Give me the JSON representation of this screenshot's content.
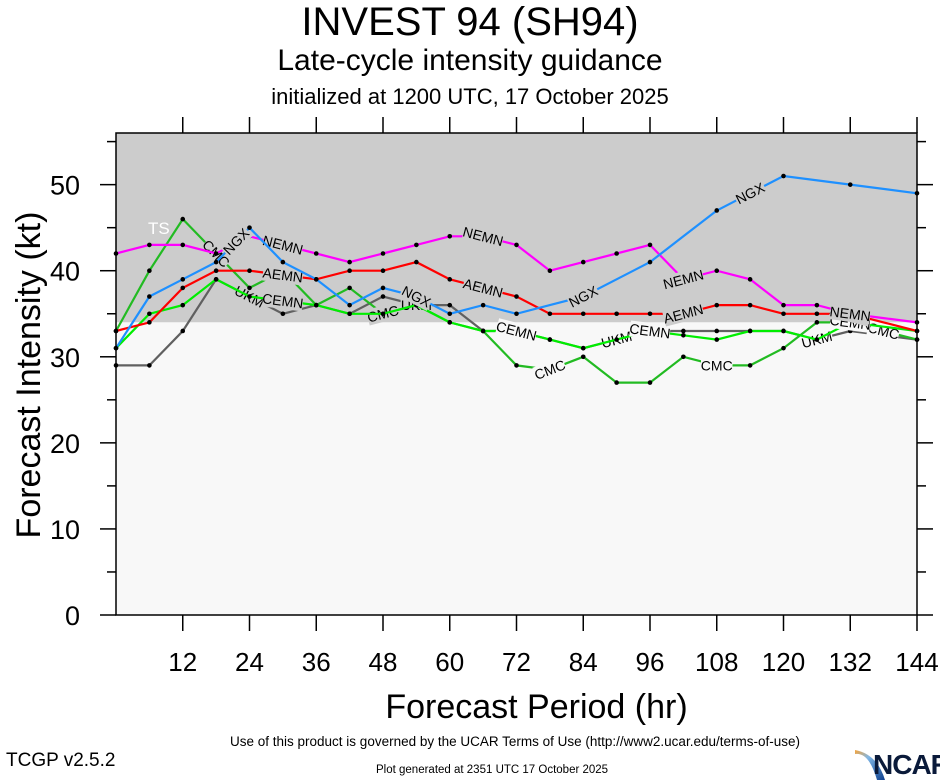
{
  "header": {
    "title": "INVEST 94 (SH94)",
    "subtitle": "Late-cycle intensity guidance",
    "init_line": "initialized at 1200 UTC, 17 October 2025"
  },
  "footer": {
    "terms": "Use of this product is governed by the UCAR Terms of Use (http://www2.ucar.edu/terms-of-use)",
    "version": "TCGP v2.5.2",
    "generated": "Plot generated at 2351 UTC   17 October 2025",
    "logo_text": "NCAR"
  },
  "chart_data": {
    "type": "line",
    "title": "INVEST 94 (SH94)",
    "subtitle": "Late-cycle intensity guidance",
    "xlabel": "Forecast Period (hr)",
    "ylabel": "Forecast Intensity (kt)",
    "xlim": [
      0,
      144
    ],
    "ylim": [
      0,
      56
    ],
    "xticks": [
      12,
      24,
      36,
      48,
      60,
      72,
      84,
      96,
      108,
      120,
      132,
      144
    ],
    "yticks": [
      0,
      10,
      20,
      30,
      40,
      50
    ],
    "yminor_step": 5,
    "grid": false,
    "threshold": {
      "label": "TS",
      "value": 34,
      "shade_above": "#cccccc",
      "shade_below": "#f8f8f8"
    },
    "x": [
      0,
      6,
      12,
      18,
      24,
      30,
      36,
      42,
      48,
      54,
      60,
      66,
      72,
      78,
      84,
      90,
      96,
      102,
      108,
      114,
      120,
      126,
      132,
      138,
      144
    ],
    "series": [
      {
        "name": "UKM",
        "color": "#606060",
        "values": [
          29,
          29,
          33,
          39,
          37,
          35,
          36,
          35,
          37,
          36,
          36,
          33,
          33,
          32,
          31,
          32,
          33,
          33,
          33,
          33,
          33,
          32,
          33,
          32.5,
          32
        ],
        "dots": [
          0,
          1,
          2,
          3,
          5,
          6,
          7,
          8,
          10,
          11,
          12,
          13,
          14,
          16,
          17,
          18,
          19,
          20,
          22,
          24
        ],
        "label_at": [
          4,
          9,
          15,
          21
        ]
      },
      {
        "name": "CMC",
        "color": "#22bb22",
        "values": [
          33,
          40,
          46,
          42,
          38,
          40,
          36,
          38,
          35,
          36,
          34,
          33,
          29,
          28.5,
          30,
          27,
          27,
          30,
          29,
          29,
          31,
          34,
          34,
          33,
          32
        ],
        "dots": [
          0,
          1,
          2,
          4,
          5,
          6,
          7,
          9,
          10,
          11,
          12,
          14,
          15,
          16,
          17,
          19,
          20,
          21,
          22,
          24
        ],
        "label_at": [
          3,
          8,
          13,
          18,
          23
        ]
      },
      {
        "name": "CEMN",
        "color": "#00ee00",
        "values": [
          31,
          35,
          36,
          39,
          37,
          36.5,
          36,
          35,
          35,
          36,
          34,
          33,
          33,
          32,
          31,
          32,
          33,
          32.5,
          32,
          33,
          33,
          32,
          34,
          33.5,
          33
        ],
        "dots": [
          0,
          1,
          2,
          3,
          4,
          6,
          7,
          8,
          9,
          10,
          11,
          13,
          14,
          15,
          17,
          18,
          19,
          20,
          21,
          24
        ],
        "label_at": [
          5,
          12,
          16,
          22
        ]
      },
      {
        "name": "AEMN",
        "color": "#ff0000",
        "values": [
          33,
          34,
          38,
          40,
          40,
          39.5,
          39,
          40,
          40,
          41,
          39,
          38,
          37,
          35,
          35,
          35,
          35,
          35,
          36,
          36,
          35,
          35,
          35,
          34,
          33
        ],
        "dots": [
          0,
          1,
          2,
          3,
          4,
          6,
          7,
          8,
          9,
          10,
          12,
          13,
          14,
          15,
          16,
          18,
          19,
          20,
          21,
          24
        ],
        "label_at": [
          5,
          11,
          17,
          22
        ]
      },
      {
        "name": "NEMN",
        "color": "#ff00ff",
        "values": [
          42,
          43,
          43,
          42,
          44,
          43,
          42,
          41,
          42,
          43,
          44,
          44,
          43,
          40,
          41,
          42,
          43,
          39,
          40,
          39,
          36,
          36,
          35,
          34.5,
          34
        ],
        "dots": [
          0,
          1,
          2,
          3,
          4,
          6,
          7,
          8,
          9,
          10,
          12,
          13,
          14,
          15,
          16,
          17,
          18,
          19,
          20,
          21,
          24
        ],
        "label_at": [
          5,
          11,
          17,
          22
        ]
      },
      {
        "name": "NGX",
        "color": "#1e90ff",
        "values": [
          31,
          37,
          39,
          41,
          45,
          41,
          39,
          36,
          38,
          37,
          35,
          36,
          35,
          36,
          37,
          39,
          41,
          44,
          47,
          49,
          51,
          null,
          50,
          null,
          49
        ],
        "dots": [
          0,
          1,
          2,
          3,
          4,
          5,
          6,
          7,
          8,
          10,
          11,
          12,
          16,
          18,
          20,
          22,
          24
        ],
        "label_at": [
          3.6,
          9,
          14,
          19
        ]
      }
    ]
  }
}
